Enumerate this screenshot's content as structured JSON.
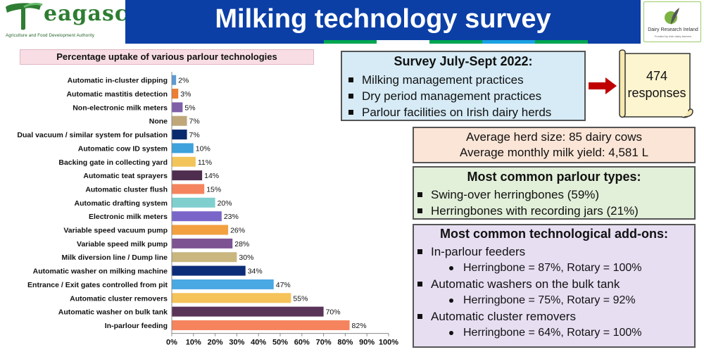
{
  "header": {
    "title": "Milking technology survey",
    "logo_left": {
      "word": "eagasc",
      "subtitle": "Agriculture and Food Development Authority"
    },
    "logo_right": {
      "name": "Dairy Research Ireland",
      "tagline": "Funded by Irish dairy farmers"
    },
    "stripe_colors": [
      "#00a651",
      "#ffffff",
      "#00a651",
      "#1ba1e2",
      "#00a651",
      "#0b3fa6"
    ]
  },
  "chart_title": "Percentage uptake of various parlour technologies",
  "chart_data": {
    "type": "bar",
    "orientation": "horizontal",
    "title": "Percentage uptake of various parlour technologies",
    "categories": [
      "Automatic in-cluster dipping",
      "Automatic mastitis detection",
      "Non-electronic milk meters",
      "None",
      "Dual vacuum / similar system for pulsation",
      "Automatic cow ID system",
      "Backing gate in collecting yard",
      "Automatic teat sprayers",
      "Automatic cluster flush",
      "Automatic drafting system",
      "Electronic milk meters",
      "Variable speed vacuum pump",
      "Variable speed milk pump",
      "Milk diversion line / Dump line",
      "Automatic washer on milking machine",
      "Entrance / Exit gates controlled from pit",
      "Automatic cluster removers",
      "Automatic washer on bulk tank",
      "In-parlour feeding"
    ],
    "values": [
      2,
      3,
      5,
      7,
      7,
      10,
      11,
      14,
      15,
      20,
      23,
      26,
      28,
      30,
      34,
      47,
      55,
      70,
      82
    ],
    "data_labels": [
      "2%",
      "3%",
      "5%",
      "7%",
      "7%",
      "10%",
      "11%",
      "14%",
      "15%",
      "20%",
      "23%",
      "26%",
      "28%",
      "30%",
      "34%",
      "47%",
      "55%",
      "70%",
      "82%"
    ],
    "colors": [
      "#5b9bd5",
      "#ed7d31",
      "#7f5fa7",
      "#bfa77a",
      "#0a2a6e",
      "#3ea2db",
      "#f2c45a",
      "#4f2d4f",
      "#f5845e",
      "#7fcfcf",
      "#7a65c8",
      "#f2a040",
      "#7d5391",
      "#c9b77f",
      "#0c2d78",
      "#4aa8e3",
      "#f5c35a",
      "#5a3358",
      "#f5845e"
    ],
    "xlim": [
      0,
      100
    ],
    "x_ticks": [
      "0%",
      "10%",
      "20%",
      "30%",
      "40%",
      "50%",
      "60%",
      "70%",
      "80%",
      "90%",
      "100%"
    ],
    "grid": false
  },
  "survey": {
    "title": "Survey July-Sept 2022:",
    "items": [
      "Milking management practices",
      "Dry period management practices",
      "Parlour facilities on Irish dairy herds"
    ]
  },
  "responses": {
    "count": "474",
    "label": "responses"
  },
  "herd_stats": {
    "line1": "Average herd size: 85 dairy cows",
    "line2": "Average monthly milk yield: 4,581 L"
  },
  "parlour_types": {
    "title": "Most common parlour types:",
    "items": [
      "Swing-over herringbones (59%)",
      "Herringbones with recording jars (21%)"
    ]
  },
  "addons": {
    "title": "Most common technological add-ons:",
    "items": [
      {
        "label": "In-parlour feeders",
        "detail": "Herringbone = 87%, Rotary = 100%"
      },
      {
        "label": "Automatic washers on the bulk tank",
        "detail": "Herringbone = 75%, Rotary = 92%"
      },
      {
        "label": "Automatic cluster removers",
        "detail": "Herringbone = 64%, Rotary = 100%"
      }
    ]
  }
}
